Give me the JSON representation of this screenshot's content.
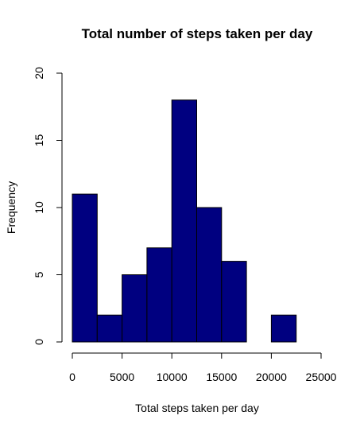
{
  "chart_data": {
    "type": "bar",
    "title": "Total number of steps taken per day",
    "xlabel": "Total steps taken per day",
    "ylabel": "Frequency",
    "bins": [
      {
        "from": 0,
        "to": 2500,
        "count": 11
      },
      {
        "from": 2500,
        "to": 5000,
        "count": 2
      },
      {
        "from": 5000,
        "to": 7500,
        "count": 5
      },
      {
        "from": 7500,
        "to": 10000,
        "count": 7
      },
      {
        "from": 10000,
        "to": 12500,
        "count": 18
      },
      {
        "from": 12500,
        "to": 15000,
        "count": 10
      },
      {
        "from": 15000,
        "to": 17500,
        "count": 6
      },
      {
        "from": 17500,
        "to": 20000,
        "count": 0
      },
      {
        "from": 20000,
        "to": 22500,
        "count": 2
      }
    ],
    "xlim": [
      0,
      25000
    ],
    "ylim": [
      0,
      20
    ],
    "x_ticks": [
      "0",
      "5000",
      "10000",
      "15000",
      "20000",
      "25000"
    ],
    "x_tick_values": [
      0,
      5000,
      10000,
      15000,
      20000,
      25000
    ],
    "y_ticks": [
      "0",
      "5",
      "10",
      "15",
      "20"
    ],
    "y_tick_values": [
      0,
      5,
      10,
      15,
      20
    ],
    "bar_color": "#000080",
    "grid": false
  }
}
